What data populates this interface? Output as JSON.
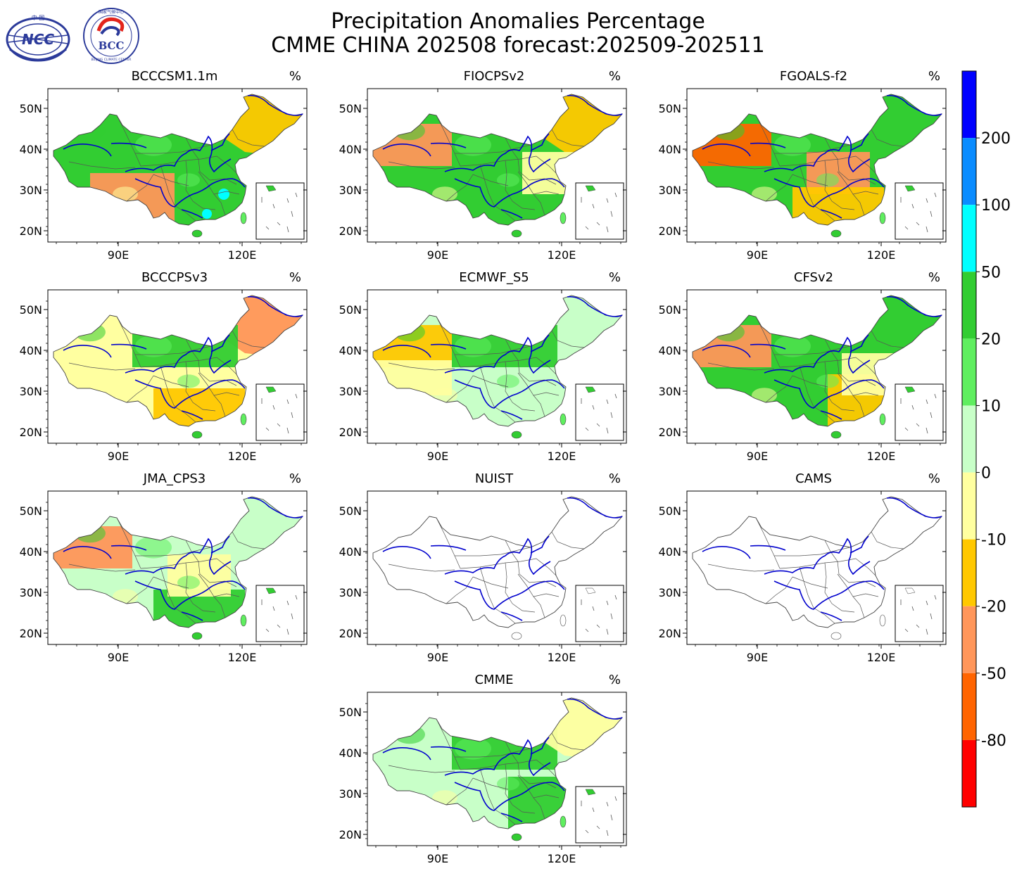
{
  "title": {
    "line1": "Precipitation Anomalies Percentage",
    "line2": "CMME CHINA 202508 forecast:202509-202511"
  },
  "logos": {
    "ncc": {
      "text": "NCC",
      "top_text": "中 国"
    },
    "bcc": {
      "text": "BCC",
      "ring_text": "BEIJING CLIMATE CENTER",
      "top_text": "国家气候中心"
    }
  },
  "unit": "%",
  "axes": {
    "x_ticks": [
      "90E",
      "120E"
    ],
    "y_ticks": [
      "50N",
      "40N",
      "30N",
      "20N"
    ]
  },
  "panels": [
    {
      "name": "BCCCSM1.1m",
      "has_data": true,
      "fields": {
        "general": "green",
        "northeast": "orange",
        "southwest": "salmon",
        "south_east": "cyan-spots"
      }
    },
    {
      "name": "FIOCPSv2",
      "has_data": true,
      "fields": {
        "general": "green",
        "northeast": "orange",
        "northwest": "salmon",
        "east": "yellow"
      }
    },
    {
      "name": "FGOALS-f2",
      "has_data": true,
      "fields": {
        "general": "green",
        "northwest": "red-orange",
        "central": "salmon",
        "south": "orange"
      }
    },
    {
      "name": "BCCCPSv3",
      "has_data": true,
      "fields": {
        "general": "yellow",
        "northeast": "salmon",
        "north": "green",
        "south": "orange"
      }
    },
    {
      "name": "ECMWF_S5",
      "has_data": true,
      "fields": {
        "general": "lightgreen",
        "north": "green",
        "northwest": "orange",
        "west": "yellow"
      }
    },
    {
      "name": "CFSv2",
      "has_data": true,
      "fields": {
        "general": "green",
        "northwest": "salmon",
        "southeast": "orange",
        "east": "yellow"
      }
    },
    {
      "name": "JMA_CPS3",
      "has_data": true,
      "fields": {
        "general": "lightgreen",
        "south": "green",
        "northwest": "salmon",
        "central": "yellow"
      }
    },
    {
      "name": "NUIST",
      "has_data": false,
      "fields": {}
    },
    {
      "name": "CAMS",
      "has_data": false,
      "fields": {}
    },
    {
      "name": "CMME",
      "has_data": true,
      "fields": {
        "general": "lightgreen",
        "north": "green",
        "southeast": "green",
        "northeast": "yellow"
      }
    }
  ],
  "colorbar": {
    "levels": [
      {
        "label": "",
        "color": "#0000FF"
      },
      {
        "label": "200",
        "color": "#0A8CFF"
      },
      {
        "label": "100",
        "color": "#00FFFF"
      },
      {
        "label": "50",
        "color": "#32CD32"
      },
      {
        "label": "20",
        "color": "#5FEE5F"
      },
      {
        "label": "10",
        "color": "#C8FFC8"
      },
      {
        "label": "0",
        "color": "#FFFFA0"
      },
      {
        "label": "-10",
        "color": "#FFC800"
      },
      {
        "label": "-20",
        "color": "#FF965A"
      },
      {
        "label": "-50",
        "color": "#FF6400"
      },
      {
        "label": "-80",
        "color": "#FF0000"
      }
    ]
  },
  "palette": {
    "blue": "#0000FF",
    "sky": "#0A8CFF",
    "cyan": "#00FFFF",
    "green": "#32CD32",
    "midgreen": "#5FEE5F",
    "lightgreen": "#C8FFC8",
    "yellow": "#FFFFA0",
    "orange": "#FFC800",
    "salmon": "#FF965A",
    "redorange": "#FF6400",
    "red": "#FF0000",
    "river": "#0000CD",
    "border": "#555555"
  }
}
